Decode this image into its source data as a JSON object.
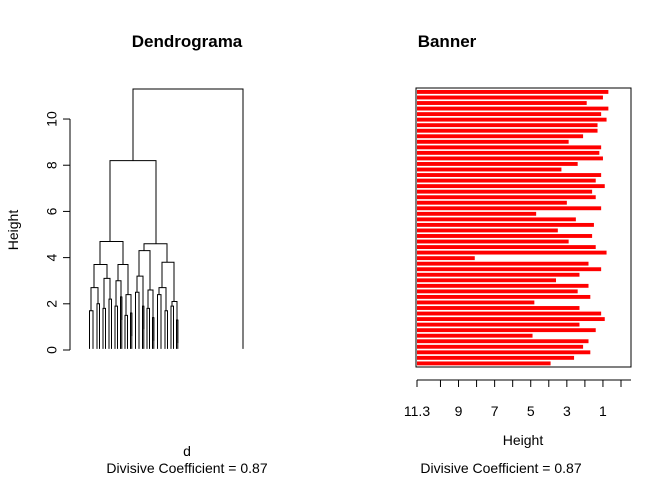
{
  "chart_data": [
    {
      "type": "dendrogram",
      "title": "Dendrograma",
      "ylabel": "Height",
      "xlabel": "d",
      "subtitle": "Divisive Coefficient =  0.87",
      "ylim": [
        0,
        11.3
      ],
      "yticks": [
        0,
        2,
        4,
        6,
        8,
        10
      ],
      "merges": [
        {
          "left": [
            0.0,
            0.45
          ],
          "right": [
            0.55,
            1.0
          ],
          "height": 11.3
        },
        {
          "left": [
            0.0,
            0.22
          ],
          "right": [
            0.23,
            0.45
          ],
          "height": 8.2
        },
        {
          "left": [
            0.0,
            0.12
          ],
          "right": [
            0.13,
            0.22
          ],
          "height": 4.7
        },
        {
          "left": [
            0.23,
            0.33
          ],
          "right": [
            0.34,
            0.45
          ],
          "height": 4.6
        },
        {
          "left": [
            0.0,
            0.06
          ],
          "right": [
            0.07,
            0.12
          ],
          "height": 3.7
        },
        {
          "left": [
            0.13,
            0.17
          ],
          "right": [
            0.18,
            0.22
          ],
          "height": 3.7
        },
        {
          "left": [
            0.23,
            0.28
          ],
          "right": [
            0.29,
            0.33
          ],
          "height": 4.3
        },
        {
          "left": [
            0.34,
            0.4
          ],
          "right": [
            0.41,
            0.45
          ],
          "height": 3.8
        },
        {
          "left": [
            0.0,
            0.03
          ],
          "right": [
            0.04,
            0.06
          ],
          "height": 2.7
        },
        {
          "left": [
            0.07,
            0.09
          ],
          "right": [
            0.1,
            0.12
          ],
          "height": 3.1
        },
        {
          "left": [
            0.13,
            0.15
          ],
          "right": [
            0.16,
            0.17
          ],
          "height": 3.0
        },
        {
          "left": [
            0.18,
            0.2
          ],
          "right": [
            0.21,
            0.22
          ],
          "height": 2.4
        },
        {
          "left": [
            0.23,
            0.26
          ],
          "right": [
            0.27,
            0.28
          ],
          "height": 3.2
        },
        {
          "left": [
            0.29,
            0.31
          ],
          "right": [
            0.32,
            0.33
          ],
          "height": 2.6
        },
        {
          "left": [
            0.34,
            0.37
          ],
          "right": [
            0.38,
            0.4
          ],
          "height": 2.7
        },
        {
          "left": [
            0.41,
            0.43
          ],
          "right": [
            0.44,
            0.45
          ],
          "height": 2.1
        },
        {
          "left": [
            0.0,
            0.015
          ],
          "right": [
            0.02,
            0.03
          ],
          "height": 1.7
        },
        {
          "left": [
            0.04,
            0.05
          ],
          "right": [
            0.055,
            0.06
          ],
          "height": 2.0
        },
        {
          "left": [
            0.07,
            0.08
          ],
          "right": [
            0.085,
            0.09
          ],
          "height": 1.8
        },
        {
          "left": [
            0.1,
            0.11
          ],
          "right": [
            0.115,
            0.12
          ],
          "height": 2.2
        },
        {
          "left": [
            0.13,
            0.14
          ],
          "right": [
            0.145,
            0.15
          ],
          "height": 1.9
        },
        {
          "left": [
            0.16,
            0.165
          ],
          "right": [
            0.168,
            0.17
          ],
          "height": 2.3
        },
        {
          "left": [
            0.18,
            0.19
          ],
          "right": [
            0.195,
            0.2
          ],
          "height": 1.5
        },
        {
          "left": [
            0.21,
            0.215
          ],
          "right": [
            0.218,
            0.22
          ],
          "height": 1.6
        },
        {
          "left": [
            0.23,
            0.245
          ],
          "right": [
            0.25,
            0.26
          ],
          "height": 2.5
        },
        {
          "left": [
            0.27,
            0.275
          ],
          "right": [
            0.278,
            0.28
          ],
          "height": 1.9
        },
        {
          "left": [
            0.29,
            0.3
          ],
          "right": [
            0.305,
            0.31
          ],
          "height": 1.8
        },
        {
          "left": [
            0.32,
            0.325
          ],
          "right": [
            0.328,
            0.33
          ],
          "height": 1.4
        },
        {
          "left": [
            0.34,
            0.355
          ],
          "right": [
            0.36,
            0.37
          ],
          "height": 2.4
        },
        {
          "left": [
            0.38,
            0.39
          ],
          "right": [
            0.395,
            0.4
          ],
          "height": 1.7
        },
        {
          "left": [
            0.41,
            0.42
          ],
          "right": [
            0.425,
            0.43
          ],
          "height": 1.9
        },
        {
          "left": [
            0.44,
            0.445
          ],
          "right": [
            0.448,
            0.45
          ],
          "height": 1.3
        }
      ]
    },
    {
      "type": "bar",
      "title": "Banner",
      "xlabel": "Height",
      "subtitle": "Divisive Coefficient =  0.87",
      "xlim": [
        11.3,
        0
      ],
      "xticks": [
        11.3,
        9,
        7,
        5,
        3,
        1
      ],
      "orientation": "horizontal",
      "bar_color": "#FF0000",
      "values": [
        0.7,
        1.0,
        1.9,
        0.7,
        1.1,
        0.8,
        1.3,
        1.3,
        2.1,
        2.9,
        1.1,
        1.2,
        1.0,
        2.4,
        3.3,
        1.1,
        1.4,
        0.9,
        1.6,
        1.4,
        3.0,
        1.1,
        4.7,
        2.5,
        1.5,
        3.5,
        1.6,
        2.9,
        1.4,
        0.8,
        8.1,
        1.8,
        1.1,
        2.3,
        3.6,
        1.8,
        2.4,
        1.7,
        4.8,
        2.3,
        1.1,
        0.9,
        2.3,
        1.4,
        4.9,
        1.8,
        2.1,
        1.7,
        2.6,
        3.9
      ]
    }
  ]
}
